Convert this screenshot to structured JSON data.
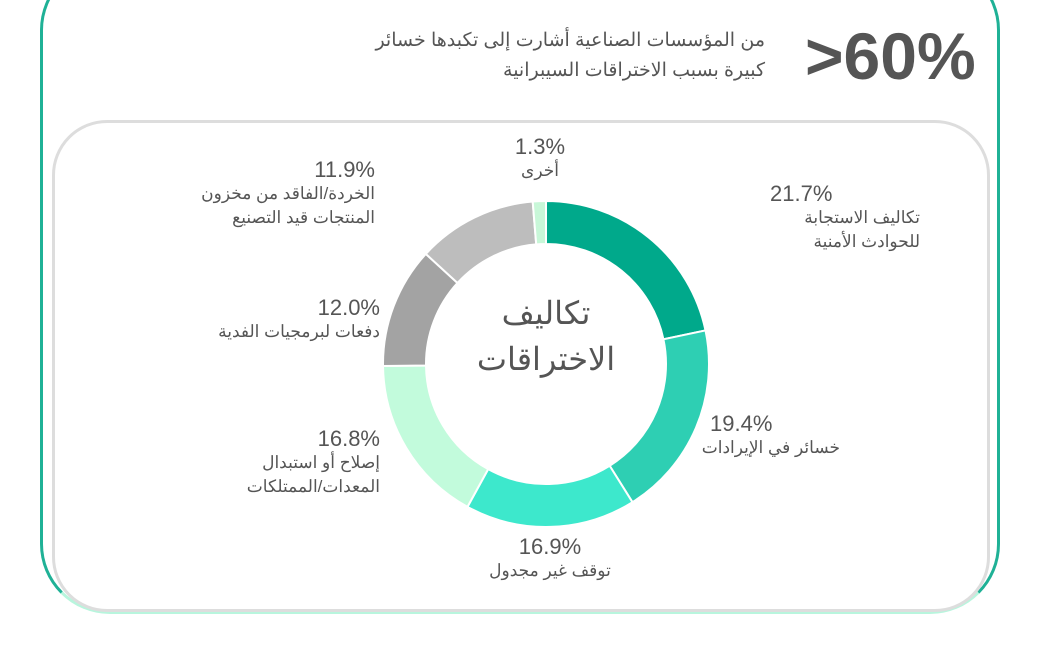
{
  "header": {
    "stat": ">60%",
    "description": "من المؤسسات الصناعية أشارت إلى تكبدها خسائر كبيرة بسبب الاختراقات السيبرانية"
  },
  "chart_data": {
    "type": "pie",
    "title": "تكاليف الاختراقات",
    "categories": [
      "تكاليف الاستجابة للحوادث الأمنية",
      "خسائر في الإيرادات",
      "توقف غير مجدول",
      "إصلاح أو استبدال المعدات/الممتلكات",
      "دفعات لبرمجيات الفدية",
      "الخردة/الفاقد من مخزون المنتجات قيد التصنيع",
      "أخرى"
    ],
    "values": [
      21.7,
      19.4,
      16.9,
      16.8,
      12.0,
      11.9,
      1.3
    ],
    "value_labels": [
      "21.7%",
      "19.4%",
      "16.9%",
      "16.8%",
      "12.0%",
      "11.9%",
      "1.3%"
    ],
    "colors": [
      "#00a98b",
      "#2ecfb3",
      "#3de8cc",
      "#c2fbdc",
      "#a3a3a3",
      "#bdbdbd",
      "#c8f7d8"
    ]
  }
}
